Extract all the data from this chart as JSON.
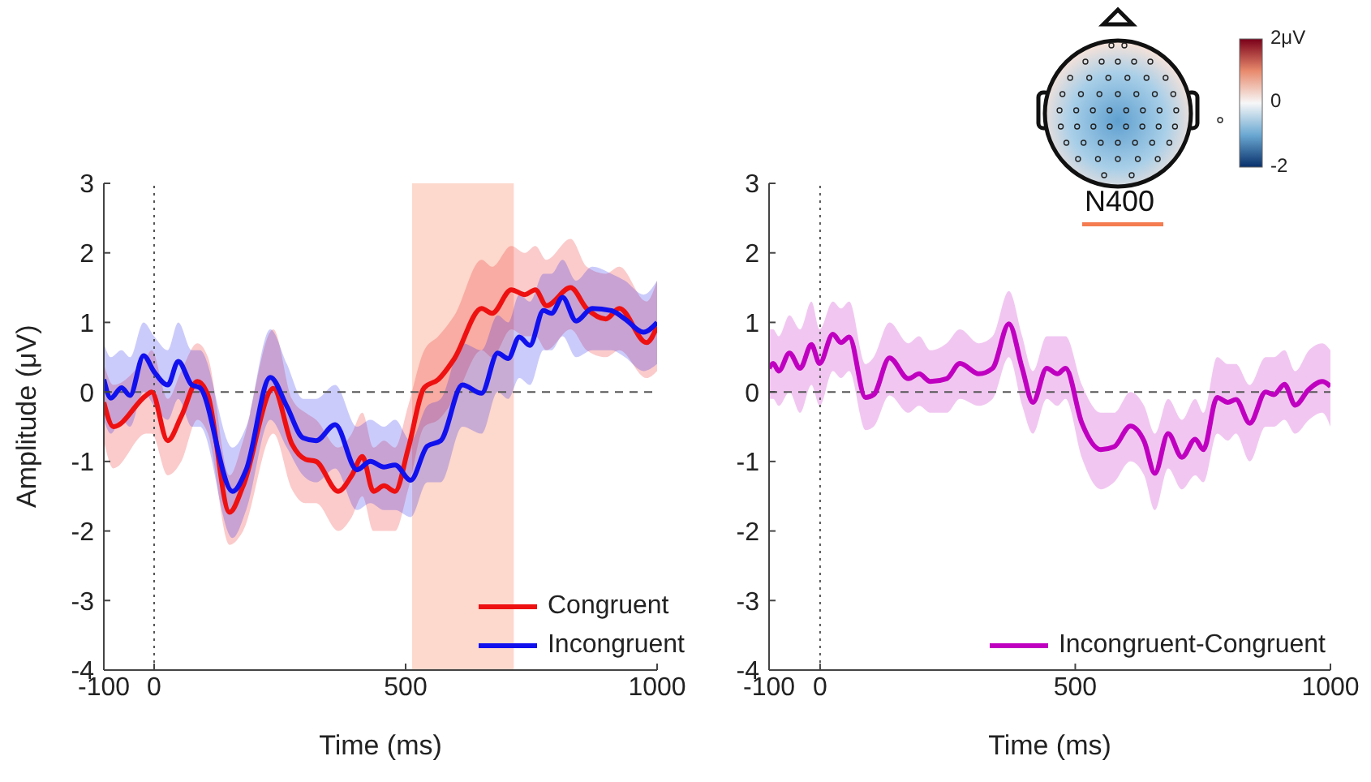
{
  "chart_data": [
    {
      "type": "line",
      "xlabel": "Time (ms)",
      "ylabel": "Amplitude (μV)",
      "xlim": [
        -100,
        1000
      ],
      "xticks": [
        -100,
        0,
        500,
        1000
      ],
      "ylim": [
        -4,
        3
      ],
      "yticks": [
        -4,
        -3,
        -2,
        -1,
        0,
        1,
        2,
        3
      ],
      "legend": "bottom right",
      "ref_lines": [
        {
          "axis": "x",
          "value": 0,
          "line_style": "dotted",
          "color": "#555555"
        },
        {
          "axis": "y",
          "value": 0,
          "line_style": "dashed",
          "color": "#555555"
        }
      ],
      "bands": [
        {
          "axis": "x",
          "from": 513,
          "to": 715,
          "color": "#fdd8cc"
        }
      ],
      "series": [
        {
          "name": "Congruent",
          "color": "#ee1111",
          "x": [
            -100,
            -81,
            -16,
            -5,
            27,
            54,
            86,
            107,
            150,
            177,
            237,
            274,
            301,
            322,
            366,
            393,
            414,
            436,
            457,
            479,
            505,
            537,
            565,
            597,
            651,
            672,
            710,
            737,
            758,
            780,
            828,
            860,
            898,
            925,
            979,
            1000
          ],
          "values": [
            -0.15,
            -0.5,
            -0.05,
            0,
            -0.7,
            -0.35,
            0.15,
            -0.05,
            -1.73,
            -1.35,
            0.05,
            -0.75,
            -0.97,
            -1.0,
            -1.43,
            -1.2,
            -0.93,
            -1.43,
            -1.35,
            -1.43,
            -0.82,
            0.06,
            0.18,
            0.48,
            1.2,
            1.13,
            1.47,
            1.4,
            1.47,
            1.24,
            1.5,
            1.2,
            1.05,
            1.2,
            0.71,
            0.94
          ],
          "lower": [
            -0.7,
            -1.1,
            -0.6,
            -0.6,
            -1.2,
            -1.0,
            -0.4,
            -0.6,
            -2.2,
            -2.0,
            -0.6,
            -1.4,
            -1.6,
            -1.6,
            -2.0,
            -1.8,
            -1.5,
            -2.0,
            -2.0,
            -2.0,
            -1.4,
            -0.5,
            -0.4,
            -0.1,
            0.6,
            0.5,
            0.9,
            0.8,
            0.8,
            0.6,
            0.9,
            0.6,
            0.5,
            0.6,
            0.2,
            0.3
          ],
          "upper": [
            0.4,
            0.1,
            0.5,
            0.6,
            -0.1,
            0.3,
            0.7,
            0.5,
            -1.2,
            -0.7,
            0.9,
            -0.1,
            -0.3,
            -0.4,
            -0.8,
            -0.6,
            -0.3,
            -0.8,
            -0.7,
            -0.8,
            -0.2,
            0.6,
            0.8,
            1.1,
            1.9,
            1.8,
            2.1,
            2.0,
            2.1,
            1.9,
            2.2,
            1.8,
            1.7,
            1.8,
            1.3,
            1.6
          ]
        },
        {
          "name": "Incongruent",
          "color": "#1111ee",
          "x": [
            -100,
            -86,
            -65,
            -48,
            -21,
            0,
            27,
            48,
            75,
            91,
            156,
            183,
            231,
            264,
            296,
            322,
            360,
            403,
            430,
            457,
            479,
            510,
            543,
            570,
            613,
            651,
            683,
            704,
            726,
            747,
            774,
            790,
            812,
            839,
            871,
            909,
            936,
            973,
            1000
          ],
          "values": [
            0.18,
            -0.09,
            0.06,
            -0.05,
            0.52,
            0.29,
            0.1,
            0.44,
            0.1,
            0.06,
            -1.43,
            -1.12,
            0.21,
            -0.21,
            -0.66,
            -0.7,
            -0.47,
            -1.12,
            -1.0,
            -1.08,
            -1.05,
            -1.27,
            -0.78,
            -0.7,
            0.1,
            -0.02,
            0.56,
            0.48,
            0.79,
            0.67,
            1.17,
            1.13,
            1.36,
            1.02,
            1.2,
            1.17,
            1.05,
            0.86,
            1.0
          ],
          "lower": [
            -0.4,
            -0.6,
            -0.4,
            -0.5,
            0,
            -0.2,
            -0.4,
            -0.1,
            -0.5,
            -0.5,
            -2.1,
            -1.7,
            -0.4,
            -0.8,
            -1.2,
            -1.3,
            -1.1,
            -1.7,
            -1.6,
            -1.7,
            -1.7,
            -1.8,
            -1.3,
            -1.3,
            -0.5,
            -0.6,
            0,
            -0.1,
            0.2,
            0.1,
            0.6,
            0.6,
            0.8,
            0.5,
            0.6,
            0.6,
            0.5,
            0.3,
            0.4
          ],
          "upper": [
            0.7,
            0.5,
            0.6,
            0.5,
            1.0,
            0.8,
            0.6,
            1.0,
            0.6,
            0.6,
            -0.8,
            -0.5,
            0.9,
            0.4,
            -0.1,
            -0.1,
            0.1,
            -0.5,
            -0.4,
            -0.5,
            -0.4,
            -0.7,
            -0.2,
            -0.1,
            0.7,
            0.6,
            1.1,
            1.0,
            1.4,
            1.3,
            1.7,
            1.7,
            1.9,
            1.6,
            1.8,
            1.7,
            1.6,
            1.4,
            1.6
          ]
        }
      ]
    },
    {
      "type": "line",
      "xlabel": "Time (ms)",
      "xlim": [
        -100,
        1000
      ],
      "xticks": [
        -100,
        0,
        500,
        1000
      ],
      "ylim": [
        -4,
        3
      ],
      "yticks": [
        -4,
        -3,
        -2,
        -1,
        0,
        1,
        2,
        3
      ],
      "legend": "bottom right",
      "annotations": [
        "N400",
        "2μV",
        "0",
        "-2"
      ],
      "ref_lines": [
        {
          "axis": "x",
          "value": 0,
          "line_style": "dotted",
          "color": "#555555"
        },
        {
          "axis": "y",
          "value": 0,
          "line_style": "dashed",
          "color": "#555555"
        }
      ],
      "series": [
        {
          "name": "Incongruent-Congruent",
          "color": "#c000c0",
          "x": [
            -100,
            -92,
            -81,
            -60,
            -39,
            -17,
            -1,
            25,
            41,
            57,
            89,
            105,
            136,
            173,
            194,
            216,
            248,
            274,
            311,
            338,
            370,
            396,
            417,
            444,
            465,
            481,
            513,
            550,
            576,
            608,
            635,
            656,
            682,
            709,
            735,
            751,
            778,
            799,
            815,
            842,
            873,
            889,
            910,
            931,
            958,
            984,
            1000
          ],
          "values": [
            0.34,
            0.41,
            0.3,
            0.56,
            0.34,
            0.68,
            0.41,
            0.83,
            0.71,
            0.79,
            -0.08,
            -0.04,
            0.49,
            0.19,
            0.26,
            0.15,
            0.19,
            0.41,
            0.26,
            0.34,
            0.98,
            0.34,
            -0.15,
            0.34,
            0.26,
            0.34,
            -0.45,
            -0.83,
            -0.79,
            -0.49,
            -0.71,
            -1.17,
            -0.6,
            -0.94,
            -0.68,
            -0.83,
            -0.08,
            -0.15,
            -0.11,
            -0.45,
            0,
            -0.04,
            0.11,
            -0.19,
            0.04,
            0.15,
            0.08
          ],
          "lower": [
            -0.1,
            -0.1,
            -0.2,
            0,
            -0.3,
            0.1,
            -0.2,
            0.3,
            0.2,
            0.3,
            -0.55,
            -0.5,
            -0.05,
            -0.3,
            -0.2,
            -0.3,
            -0.3,
            -0.1,
            -0.2,
            -0.1,
            0.5,
            -0.2,
            -0.6,
            -0.1,
            -0.2,
            -0.1,
            -0.95,
            -1.4,
            -1.3,
            -1.0,
            -1.2,
            -1.7,
            -1.1,
            -1.4,
            -1.2,
            -1.3,
            -0.6,
            -0.7,
            -0.6,
            -1.0,
            -0.5,
            -0.5,
            -0.4,
            -0.6,
            -0.4,
            -0.3,
            -0.5
          ],
          "upper": [
            0.9,
            0.9,
            0.8,
            1.1,
            0.9,
            1.3,
            0.9,
            1.3,
            1.2,
            1.3,
            0.4,
            0.5,
            1.0,
            0.7,
            0.8,
            0.6,
            0.7,
            0.9,
            0.7,
            0.8,
            1.45,
            0.8,
            0.3,
            0.8,
            0.8,
            0.8,
            0.1,
            -0.3,
            -0.3,
            0.0,
            -0.2,
            -0.6,
            -0.1,
            -0.4,
            -0.1,
            -0.3,
            0.5,
            0.4,
            0.4,
            0.1,
            0.5,
            0.5,
            0.6,
            0.3,
            0.6,
            0.7,
            0.6
          ]
        }
      ]
    }
  ]
}
